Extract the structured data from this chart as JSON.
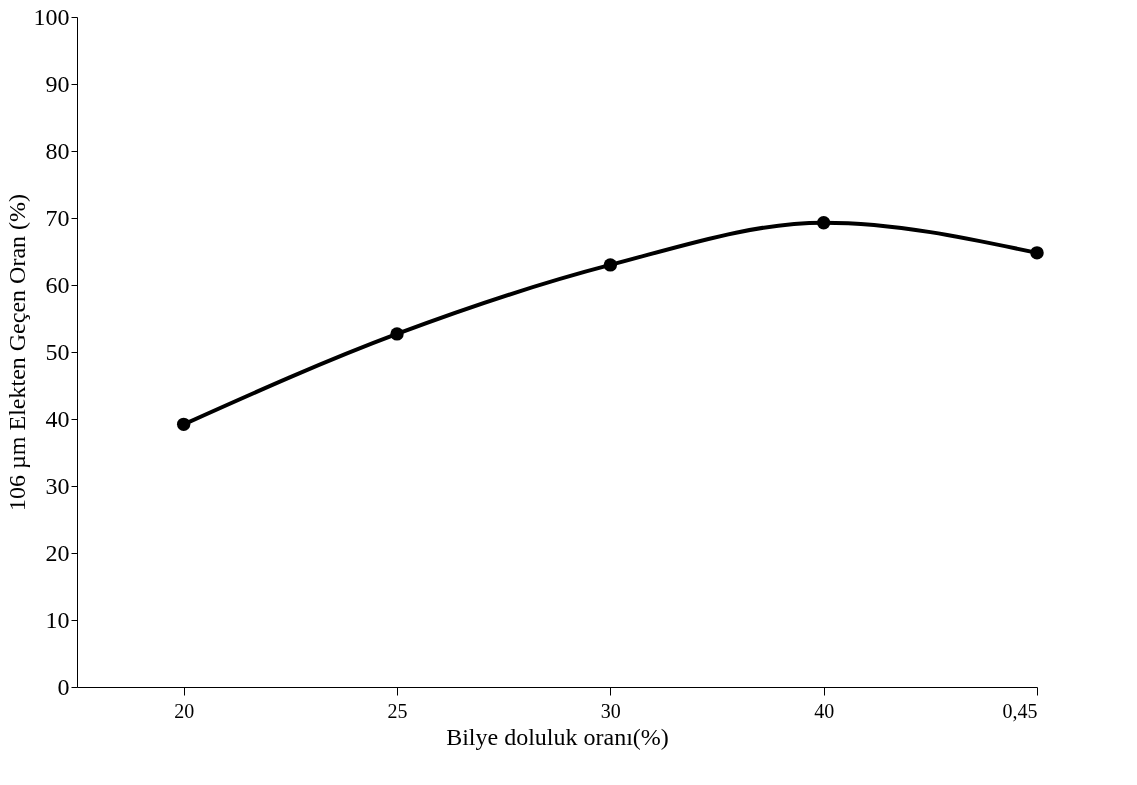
{
  "chart_data": {
    "type": "line",
    "xlabel": "Bilye doluluk oranı(%)",
    "ylabel": "106 µm Elekten Geçen Oran (%)",
    "categories": [
      "20",
      "25",
      "30",
      "40",
      "0,45"
    ],
    "series": [
      {
        "color": "#000000",
        "values": [
          39.2,
          52.7,
          63.0,
          69.3,
          64.8
        ]
      }
    ],
    "ylim": [
      0,
      100
    ],
    "yticks": [
      0,
      10,
      20,
      30,
      40,
      50,
      60,
      70,
      80,
      90,
      100
    ],
    "grid": false,
    "legend": false,
    "marker": "circle",
    "line_style": "solid"
  }
}
